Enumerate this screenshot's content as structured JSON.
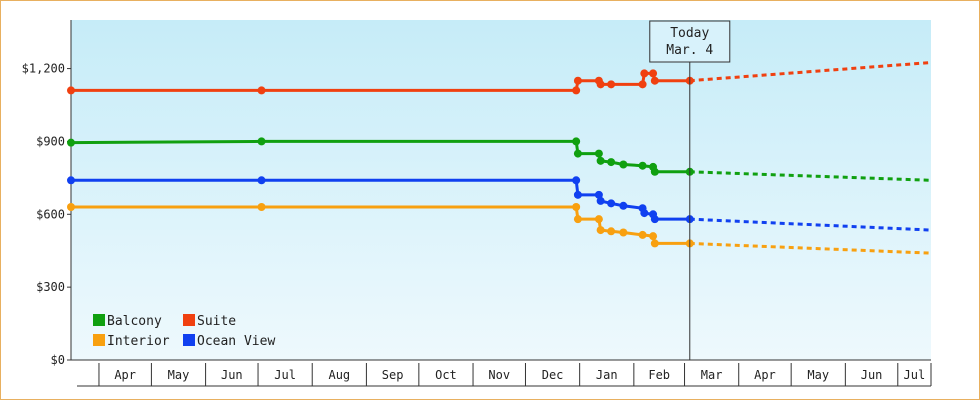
{
  "chart_data": {
    "type": "line",
    "title": "",
    "xlabel": "",
    "ylabel": "",
    "x_axis": {
      "type": "date",
      "range": [
        "2023-03-16",
        "2024-07-20"
      ],
      "month_labels": [
        {
          "label": "Apr",
          "start": "2023-04-01",
          "end": "2023-05-01"
        },
        {
          "label": "May",
          "start": "2023-05-01",
          "end": "2023-06-01"
        },
        {
          "label": "Jun",
          "start": "2023-06-01",
          "end": "2023-07-01"
        },
        {
          "label": "Jul",
          "start": "2023-07-01",
          "end": "2023-08-01"
        },
        {
          "label": "Aug",
          "start": "2023-08-01",
          "end": "2023-09-01"
        },
        {
          "label": "Sep",
          "start": "2023-09-01",
          "end": "2023-10-01"
        },
        {
          "label": "Oct",
          "start": "2023-10-01",
          "end": "2023-11-01"
        },
        {
          "label": "Nov",
          "start": "2023-11-01",
          "end": "2023-12-01"
        },
        {
          "label": "Dec",
          "start": "2023-12-01",
          "end": "2024-01-01"
        },
        {
          "label": "Jan",
          "start": "2024-01-01",
          "end": "2024-02-01"
        },
        {
          "label": "Feb",
          "start": "2024-02-01",
          "end": "2024-03-01"
        },
        {
          "label": "Mar",
          "start": "2024-03-01",
          "end": "2024-04-01"
        },
        {
          "label": "Apr",
          "start": "2024-04-01",
          "end": "2024-05-01"
        },
        {
          "label": "May",
          "start": "2024-05-01",
          "end": "2024-06-01"
        },
        {
          "label": "Jun",
          "start": "2024-06-01",
          "end": "2024-07-01"
        },
        {
          "label": "Jul",
          "start": "2024-07-01",
          "end": "2024-08-01"
        }
      ]
    },
    "y_axis": {
      "ylim": [
        0,
        1400
      ],
      "ticks": [
        {
          "value": 0,
          "label": "$0"
        },
        {
          "value": 300,
          "label": "$300"
        },
        {
          "value": 600,
          "label": "$600"
        },
        {
          "value": 900,
          "label": "$900"
        },
        {
          "value": 1200,
          "label": "$1,200"
        }
      ]
    },
    "today": {
      "date": "2024-03-04",
      "label_line1": "Today",
      "label_line2": "Mar. 4"
    },
    "legend": {
      "placement": "bottom-left",
      "entries": [
        "Balcony",
        "Suite",
        "Interior",
        "Ocean View"
      ]
    },
    "series": [
      {
        "name": "Suite",
        "color": "#f04010",
        "points": [
          [
            "2023-03-16",
            1110
          ],
          [
            "2023-07-03",
            1110
          ],
          [
            "2023-12-30",
            1110
          ],
          [
            "2023-12-31",
            1150
          ],
          [
            "2024-01-12",
            1150
          ],
          [
            "2024-01-13",
            1135
          ],
          [
            "2024-01-19",
            1135
          ],
          [
            "2024-02-06",
            1135
          ],
          [
            "2024-02-07",
            1180
          ],
          [
            "2024-02-12",
            1180
          ],
          [
            "2024-02-13",
            1150
          ],
          [
            "2024-03-04",
            1150
          ]
        ],
        "forecast": [
          [
            "2024-03-04",
            1150
          ],
          [
            "2024-07-20",
            1225
          ]
        ]
      },
      {
        "name": "Balcony",
        "color": "#10a010",
        "points": [
          [
            "2023-03-16",
            895
          ],
          [
            "2023-07-03",
            900
          ],
          [
            "2023-12-30",
            900
          ],
          [
            "2023-12-31",
            850
          ],
          [
            "2024-01-12",
            850
          ],
          [
            "2024-01-13",
            820
          ],
          [
            "2024-01-19",
            815
          ],
          [
            "2024-01-26",
            805
          ],
          [
            "2024-02-06",
            800
          ],
          [
            "2024-02-12",
            795
          ],
          [
            "2024-02-13",
            775
          ],
          [
            "2024-03-04",
            775
          ]
        ],
        "forecast": [
          [
            "2024-03-04",
            775
          ],
          [
            "2024-07-20",
            740
          ]
        ]
      },
      {
        "name": "Ocean View",
        "color": "#1040f0",
        "points": [
          [
            "2023-03-16",
            740
          ],
          [
            "2023-07-03",
            740
          ],
          [
            "2023-12-30",
            740
          ],
          [
            "2023-12-31",
            680
          ],
          [
            "2024-01-12",
            680
          ],
          [
            "2024-01-13",
            655
          ],
          [
            "2024-01-19",
            645
          ],
          [
            "2024-01-26",
            635
          ],
          [
            "2024-02-06",
            625
          ],
          [
            "2024-02-07",
            605
          ],
          [
            "2024-02-12",
            600
          ],
          [
            "2024-02-13",
            580
          ],
          [
            "2024-03-04",
            580
          ]
        ],
        "forecast": [
          [
            "2024-03-04",
            580
          ],
          [
            "2024-07-20",
            535
          ]
        ]
      },
      {
        "name": "Interior",
        "color": "#f8a010",
        "points": [
          [
            "2023-03-16",
            630
          ],
          [
            "2023-07-03",
            630
          ],
          [
            "2023-12-30",
            630
          ],
          [
            "2023-12-31",
            580
          ],
          [
            "2024-01-12",
            580
          ],
          [
            "2024-01-13",
            535
          ],
          [
            "2024-01-19",
            530
          ],
          [
            "2024-01-26",
            525
          ],
          [
            "2024-02-06",
            515
          ],
          [
            "2024-02-12",
            510
          ],
          [
            "2024-02-13",
            480
          ],
          [
            "2024-03-04",
            480
          ]
        ],
        "forecast": [
          [
            "2024-03-04",
            480
          ],
          [
            "2024-07-20",
            440
          ]
        ]
      }
    ]
  }
}
